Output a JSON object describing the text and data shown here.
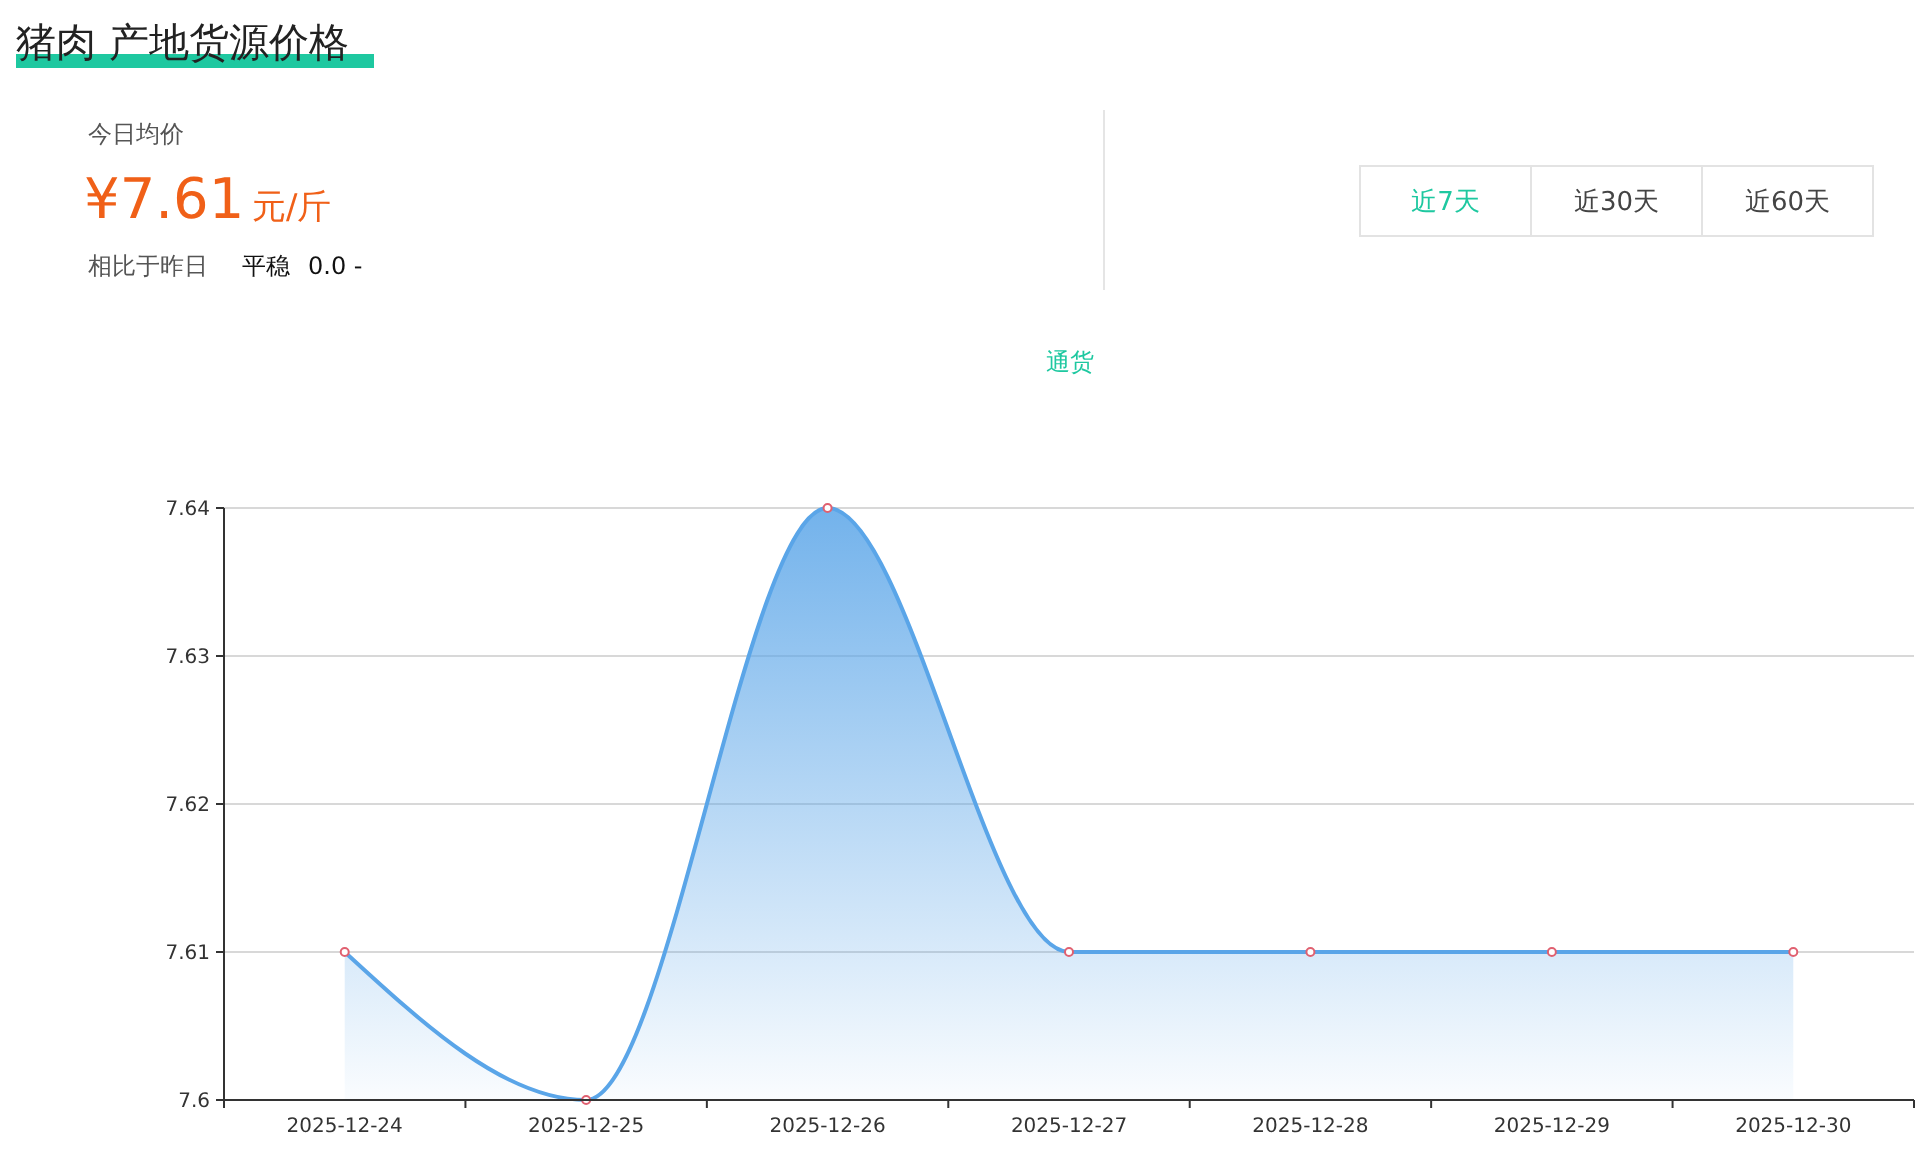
{
  "chart_data": {
    "type": "area",
    "title": "猪肉 产地货源价格",
    "annotations": [
      "今日均价",
      "¥7.61",
      "元/斤",
      "相比于昨日",
      "平稳",
      "0.0 -",
      "近7天",
      "近30天",
      "近60天"
    ],
    "categories": [
      "2025-12-24",
      "2025-12-25",
      "2025-12-26",
      "2025-12-27",
      "2025-12-28",
      "2025-12-29",
      "2025-12-30"
    ],
    "series": [
      {
        "name": "通货",
        "color": "#5aa5e8",
        "values": [
          7.61,
          7.6,
          7.64,
          7.61,
          7.61,
          7.61,
          7.61
        ]
      }
    ],
    "ylim": [
      7.6,
      7.64
    ],
    "yticks": [
      7.6,
      7.61,
      7.62,
      7.63,
      7.64
    ],
    "grid": "y",
    "legend": "top",
    "marker": "circle",
    "line_style": "solid"
  }
}
